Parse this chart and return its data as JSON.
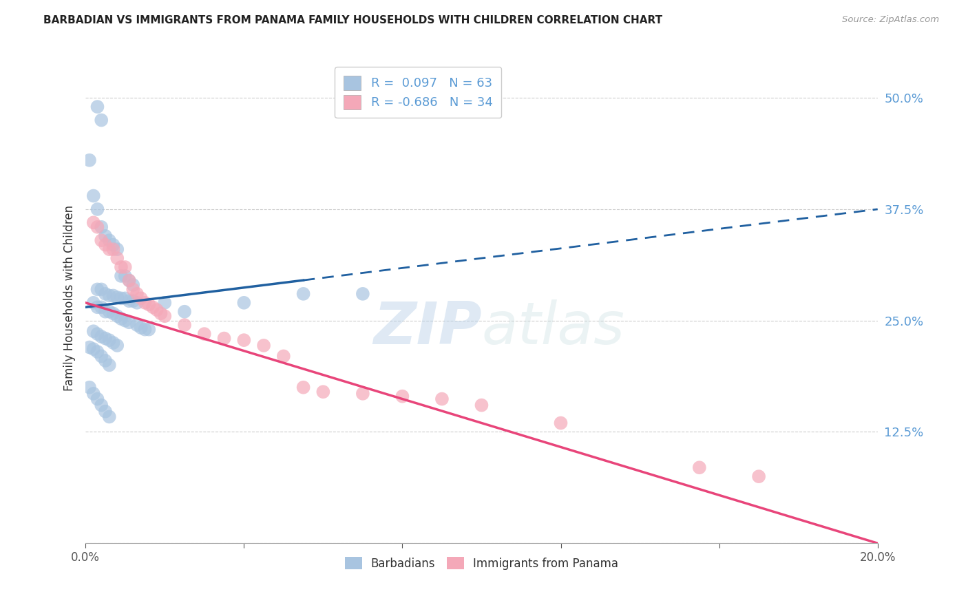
{
  "title": "BARBADIAN VS IMMIGRANTS FROM PANAMA FAMILY HOUSEHOLDS WITH CHILDREN CORRELATION CHART",
  "source": "Source: ZipAtlas.com",
  "ylabel": "Family Households with Children",
  "xlabel": "",
  "xlim": [
    0.0,
    0.2
  ],
  "ylim": [
    0.0,
    0.55
  ],
  "yticks": [
    0.0,
    0.125,
    0.25,
    0.375,
    0.5
  ],
  "ytick_labels": [
    "",
    "12.5%",
    "25.0%",
    "37.5%",
    "50.0%"
  ],
  "xticks": [
    0.0,
    0.04,
    0.08,
    0.12,
    0.16,
    0.2
  ],
  "xtick_labels": [
    "0.0%",
    "",
    "",
    "",
    "",
    "20.0%"
  ],
  "legend_labels": [
    "Barbadians",
    "Immigrants from Panama"
  ],
  "blue_R": "0.097",
  "blue_N": "63",
  "pink_R": "-0.686",
  "pink_N": "34",
  "blue_color": "#a8c4e0",
  "pink_color": "#f4a8b8",
  "blue_line_color": "#2060a0",
  "pink_line_color": "#e8457a",
  "watermark_zip": "ZIP",
  "watermark_atlas": "atlas",
  "blue_line_solid_end": 0.055,
  "blue_line_x0": 0.0,
  "blue_line_y0": 0.265,
  "blue_line_x1": 0.2,
  "blue_line_y1": 0.375,
  "pink_line_x0": 0.0,
  "pink_line_y0": 0.27,
  "pink_line_x1": 0.2,
  "pink_line_y1": 0.0,
  "blue_scatter_x": [
    0.003,
    0.004,
    0.001,
    0.002,
    0.003,
    0.004,
    0.005,
    0.006,
    0.007,
    0.008,
    0.009,
    0.01,
    0.011,
    0.012,
    0.003,
    0.004,
    0.005,
    0.006,
    0.007,
    0.008,
    0.009,
    0.01,
    0.011,
    0.012,
    0.013,
    0.002,
    0.003,
    0.004,
    0.005,
    0.006,
    0.007,
    0.008,
    0.009,
    0.01,
    0.011,
    0.013,
    0.014,
    0.015,
    0.016,
    0.002,
    0.003,
    0.004,
    0.005,
    0.006,
    0.007,
    0.008,
    0.001,
    0.002,
    0.003,
    0.004,
    0.005,
    0.006,
    0.02,
    0.025,
    0.04,
    0.055,
    0.07,
    0.001,
    0.002,
    0.003,
    0.004,
    0.005,
    0.006
  ],
  "blue_scatter_y": [
    0.49,
    0.475,
    0.43,
    0.39,
    0.375,
    0.355,
    0.345,
    0.34,
    0.335,
    0.33,
    0.3,
    0.3,
    0.295,
    0.29,
    0.285,
    0.285,
    0.28,
    0.278,
    0.278,
    0.276,
    0.275,
    0.275,
    0.272,
    0.272,
    0.27,
    0.27,
    0.265,
    0.265,
    0.26,
    0.26,
    0.258,
    0.255,
    0.252,
    0.25,
    0.248,
    0.245,
    0.242,
    0.24,
    0.24,
    0.238,
    0.235,
    0.232,
    0.23,
    0.228,
    0.225,
    0.222,
    0.22,
    0.218,
    0.215,
    0.21,
    0.205,
    0.2,
    0.27,
    0.26,
    0.27,
    0.28,
    0.28,
    0.175,
    0.168,
    0.162,
    0.155,
    0.148,
    0.142
  ],
  "pink_scatter_x": [
    0.002,
    0.003,
    0.004,
    0.005,
    0.006,
    0.007,
    0.008,
    0.009,
    0.01,
    0.011,
    0.012,
    0.013,
    0.014,
    0.015,
    0.016,
    0.017,
    0.018,
    0.019,
    0.02,
    0.025,
    0.03,
    0.035,
    0.04,
    0.045,
    0.05,
    0.055,
    0.06,
    0.07,
    0.08,
    0.09,
    0.1,
    0.12,
    0.155,
    0.17
  ],
  "pink_scatter_y": [
    0.36,
    0.355,
    0.34,
    0.335,
    0.33,
    0.33,
    0.32,
    0.31,
    0.31,
    0.295,
    0.285,
    0.28,
    0.275,
    0.27,
    0.268,
    0.265,
    0.262,
    0.258,
    0.255,
    0.245,
    0.235,
    0.23,
    0.228,
    0.222,
    0.21,
    0.175,
    0.17,
    0.168,
    0.165,
    0.162,
    0.155,
    0.135,
    0.085,
    0.075
  ]
}
